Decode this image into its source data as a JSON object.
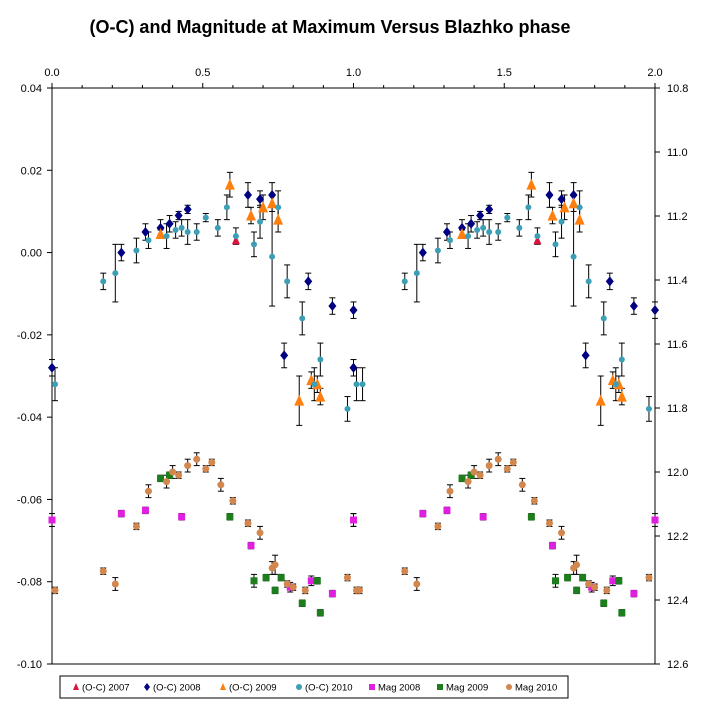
{
  "chart_data": {
    "type": "scatter",
    "title": "(O-C) and Magnitude at Maximum Versus Blazhko phase",
    "x_range": [
      0.0,
      2.0
    ],
    "x_ticks": [
      "0.0",
      "0.5",
      "1.0",
      "1.5",
      "2.0"
    ],
    "x_tick_values": [
      0.0,
      0.5,
      1.0,
      1.5,
      2.0
    ],
    "y_left_range": [
      -0.1,
      0.04
    ],
    "y_left_ticks": [
      "0.04",
      "0.02",
      "0.00",
      "-0.02",
      "-0.04",
      "-0.06",
      "-0.08",
      "-0.10"
    ],
    "y_left_tick_values": [
      0.04,
      0.02,
      0.0,
      -0.02,
      -0.04,
      -0.06,
      -0.08,
      -0.1
    ],
    "y_right_range": [
      10.8,
      12.6
    ],
    "y_right_inverted": true,
    "y_right_ticks": [
      "10.8",
      "11.0",
      "11.2",
      "11.4",
      "11.6",
      "11.8",
      "12.0",
      "12.2",
      "12.4",
      "12.6"
    ],
    "y_right_tick_values": [
      10.8,
      11.0,
      11.2,
      11.4,
      11.6,
      11.8,
      12.0,
      12.2,
      12.4,
      12.6
    ],
    "legend_position": "bottom",
    "grid": false,
    "series": [
      {
        "name": "(O-C) 2007",
        "axis": "left",
        "marker": "triangle",
        "color": "#dc143c",
        "size": 4,
        "points": [
          [
            0.61,
            0.003,
            null
          ]
        ]
      },
      {
        "name": "(O-C) 2008",
        "axis": "left",
        "marker": "diamond",
        "color": "#000080",
        "size": 4,
        "points": [
          [
            0.0,
            -0.028,
            0.002
          ],
          [
            0.23,
            0.0,
            0.002
          ],
          [
            0.31,
            0.005,
            0.002
          ],
          [
            0.36,
            0.006,
            0.002
          ],
          [
            0.39,
            0.007,
            0.002
          ],
          [
            0.42,
            0.009,
            0.001
          ],
          [
            0.45,
            0.0105,
            0.001
          ],
          [
            0.65,
            0.014,
            0.003
          ],
          [
            0.69,
            0.013,
            0.002
          ],
          [
            0.73,
            0.014,
            0.003
          ],
          [
            0.77,
            -0.025,
            0.003
          ],
          [
            0.85,
            -0.007,
            0.002
          ],
          [
            0.93,
            -0.013,
            0.002
          ],
          [
            1.0,
            -0.014,
            0.002
          ]
        ]
      },
      {
        "name": "(O-C) 2009",
        "axis": "left",
        "marker": "triangle",
        "color": "#ff7f0e",
        "size": 5,
        "points": [
          [
            0.36,
            0.0045,
            0.001
          ],
          [
            0.59,
            0.0165,
            0.003
          ],
          [
            0.66,
            0.009,
            0.002
          ],
          [
            0.7,
            0.011,
            0.003
          ],
          [
            0.73,
            0.012,
            0.002
          ],
          [
            0.75,
            0.008,
            0.003
          ],
          [
            0.82,
            -0.036,
            0.006
          ],
          [
            0.86,
            -0.031,
            0.002
          ],
          [
            0.88,
            -0.032,
            0.002
          ],
          [
            0.89,
            -0.035,
            0.002
          ]
        ]
      },
      {
        "name": "(O-C) 2010",
        "axis": "left",
        "marker": "circle",
        "color": "#3c9fb6",
        "size": 3,
        "points": [
          [
            0.01,
            -0.032,
            0.004
          ],
          [
            0.17,
            -0.007,
            0.002
          ],
          [
            0.21,
            -0.005,
            0.007
          ],
          [
            0.28,
            0.0005,
            0.003
          ],
          [
            0.32,
            0.003,
            0.002
          ],
          [
            0.38,
            0.004,
            0.003
          ],
          [
            0.41,
            0.0055,
            0.002
          ],
          [
            0.43,
            0.006,
            0.002
          ],
          [
            0.45,
            0.005,
            0.003
          ],
          [
            0.48,
            0.005,
            0.002
          ],
          [
            0.51,
            0.0085,
            0.001
          ],
          [
            0.55,
            0.006,
            0.002
          ],
          [
            0.58,
            0.011,
            0.003
          ],
          [
            0.61,
            0.004,
            0.002
          ],
          [
            0.67,
            0.002,
            0.003
          ],
          [
            0.69,
            0.0075,
            0.004
          ],
          [
            0.73,
            -0.001,
            0.012
          ],
          [
            0.75,
            0.011,
            0.004
          ],
          [
            0.78,
            -0.007,
            0.004
          ],
          [
            0.83,
            -0.016,
            0.004
          ],
          [
            0.87,
            -0.032,
            0.004
          ],
          [
            0.89,
            -0.026,
            0.004
          ],
          [
            0.98,
            -0.038,
            0.003
          ],
          [
            1.03,
            -0.032,
            0.004
          ]
        ]
      },
      {
        "name": "Mag 2008",
        "axis": "right",
        "marker": "square",
        "color": "#e020e0",
        "size": 3.5,
        "points": [
          [
            0.0,
            12.15,
            0.02
          ],
          [
            0.23,
            12.13,
            0.01
          ],
          [
            0.31,
            12.12,
            0.01
          ],
          [
            0.43,
            12.14,
            0.01
          ],
          [
            0.66,
            12.23,
            0.01
          ],
          [
            0.79,
            12.36,
            0.015
          ],
          [
            0.86,
            12.34,
            0.015
          ],
          [
            0.93,
            12.38,
            0.01
          ],
          [
            1.0,
            12.15,
            0.02
          ]
        ]
      },
      {
        "name": "Mag 2009",
        "axis": "right",
        "marker": "square",
        "color": "#1e7e1e",
        "size": 3.5,
        "points": [
          [
            0.36,
            12.02,
            0.01
          ],
          [
            0.39,
            12.01,
            0.01
          ],
          [
            0.59,
            12.14,
            0.01
          ],
          [
            0.67,
            12.34,
            0.02
          ],
          [
            0.71,
            12.33,
            0.01
          ],
          [
            0.74,
            12.37,
            0.01
          ],
          [
            0.76,
            12.33,
            0.01
          ],
          [
            0.83,
            12.41,
            0.01
          ],
          [
            0.88,
            12.34,
            0.01
          ],
          [
            0.89,
            12.44,
            0.01
          ]
        ]
      },
      {
        "name": "Mag 2010",
        "axis": "right",
        "marker": "circle",
        "color": "#d2874f",
        "size": 3.5,
        "points": [
          [
            0.01,
            12.37,
            0.01
          ],
          [
            0.17,
            12.31,
            0.01
          ],
          [
            0.21,
            12.35,
            0.02
          ],
          [
            0.28,
            12.17,
            0.01
          ],
          [
            0.32,
            12.06,
            0.02
          ],
          [
            0.38,
            12.03,
            0.02
          ],
          [
            0.4,
            12.0,
            0.02
          ],
          [
            0.42,
            12.01,
            0.01
          ],
          [
            0.45,
            11.98,
            0.02
          ],
          [
            0.48,
            11.96,
            0.02
          ],
          [
            0.51,
            11.99,
            0.01
          ],
          [
            0.53,
            11.97,
            0.01
          ],
          [
            0.56,
            12.04,
            0.02
          ],
          [
            0.6,
            12.09,
            0.01
          ],
          [
            0.65,
            12.16,
            0.01
          ],
          [
            0.69,
            12.19,
            0.02
          ],
          [
            0.73,
            12.3,
            0.02
          ],
          [
            0.74,
            12.29,
            0.03
          ],
          [
            0.78,
            12.35,
            0.01
          ],
          [
            0.8,
            12.36,
            0.01
          ],
          [
            0.84,
            12.37,
            0.01
          ],
          [
            0.98,
            12.33,
            0.01
          ],
          [
            1.02,
            12.37,
            0.01
          ]
        ]
      }
    ]
  },
  "colors": {
    "axis": "#000000",
    "errorbar": "#000000",
    "background": "#ffffff"
  }
}
